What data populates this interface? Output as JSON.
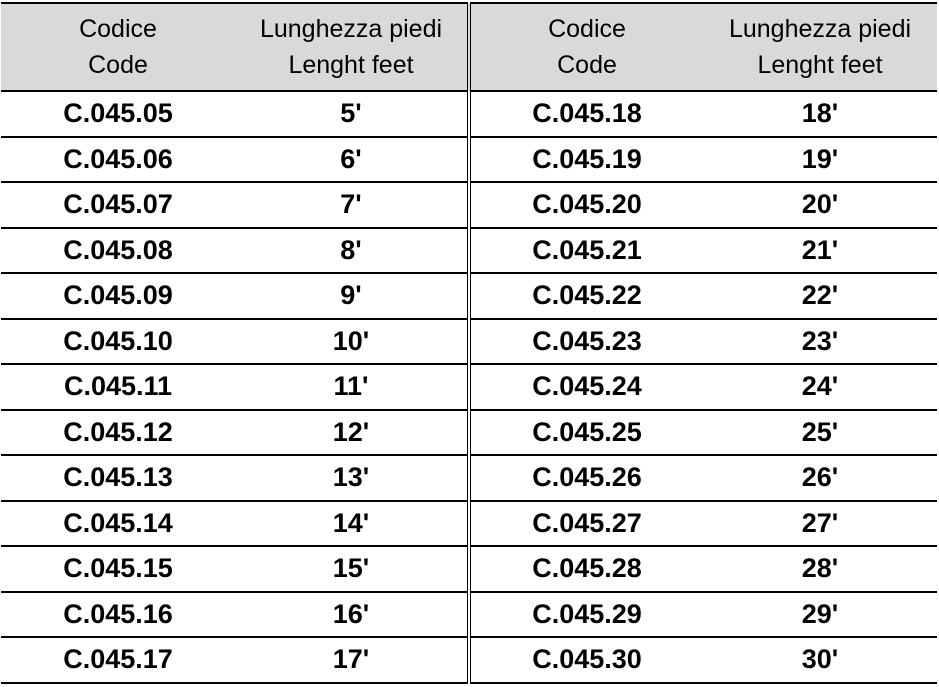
{
  "header": {
    "code_it": "Codice",
    "code_en": "Code",
    "length_it": "Lunghezza piedi",
    "length_en": "Lenght feet"
  },
  "rows": [
    {
      "code_a": "C.045.05",
      "len_a": "5'",
      "code_b": "C.045.18",
      "len_b": "18'"
    },
    {
      "code_a": "C.045.06",
      "len_a": "6'",
      "code_b": "C.045.19",
      "len_b": "19'"
    },
    {
      "code_a": "C.045.07",
      "len_a": "7'",
      "code_b": "C.045.20",
      "len_b": "20'"
    },
    {
      "code_a": "C.045.08",
      "len_a": "8'",
      "code_b": "C.045.21",
      "len_b": "21'"
    },
    {
      "code_a": "C.045.09",
      "len_a": "9'",
      "code_b": "C.045.22",
      "len_b": "22'"
    },
    {
      "code_a": "C.045.10",
      "len_a": "10'",
      "code_b": "C.045.23",
      "len_b": "23'"
    },
    {
      "code_a": "C.045.11",
      "len_a": "11'",
      "code_b": "C.045.24",
      "len_b": "24'"
    },
    {
      "code_a": "C.045.12",
      "len_a": "12'",
      "code_b": "C.045.25",
      "len_b": "25'"
    },
    {
      "code_a": "C.045.13",
      "len_a": "13'",
      "code_b": "C.045.26",
      "len_b": "26'"
    },
    {
      "code_a": "C.045.14",
      "len_a": "14'",
      "code_b": "C.045.27",
      "len_b": "27'"
    },
    {
      "code_a": "C.045.15",
      "len_a": "15'",
      "code_b": "C.045.28",
      "len_b": "28'"
    },
    {
      "code_a": "C.045.16",
      "len_a": "16'",
      "code_b": "C.045.29",
      "len_b": "29'"
    },
    {
      "code_a": "C.045.17",
      "len_a": "17'",
      "code_b": "C.045.30",
      "len_b": "30'"
    }
  ]
}
